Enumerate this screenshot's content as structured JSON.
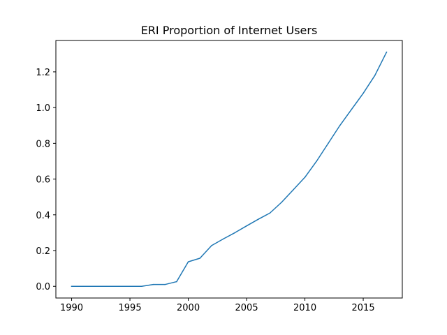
{
  "chart_data": {
    "type": "line",
    "title": "ERI Proportion of Internet Users",
    "xlabel": "",
    "ylabel": "",
    "xlim": [
      1988.65,
      2018.35
    ],
    "ylim": [
      -0.0655,
      1.3755
    ],
    "x_ticks": [
      "1990",
      "1995",
      "2000",
      "2005",
      "2010",
      "2015"
    ],
    "y_ticks": [
      "0.0",
      "0.2",
      "0.4",
      "0.6",
      "0.8",
      "1.0",
      "1.2"
    ],
    "grid": false,
    "legend": "none",
    "series": [
      {
        "color": "#1f77b4",
        "x": [
          1990,
          1991,
          1992,
          1993,
          1994,
          1995,
          1996,
          1997,
          1998,
          1999,
          2000,
          2001,
          2002,
          2003,
          2004,
          2005,
          2006,
          2007,
          2008,
          2009,
          2010,
          2011,
          2012,
          2013,
          2014,
          2015,
          2016,
          2017
        ],
        "y": [
          0,
          0,
          0,
          0,
          0,
          0,
          0,
          0.01,
          0.01,
          0.026,
          0.137,
          0.157,
          0.228,
          0.265,
          0.3,
          0.338,
          0.375,
          0.41,
          0.47,
          0.54,
          0.61,
          0.7,
          0.8,
          0.9,
          0.99,
          1.08,
          1.18,
          1.31
        ]
      }
    ]
  }
}
